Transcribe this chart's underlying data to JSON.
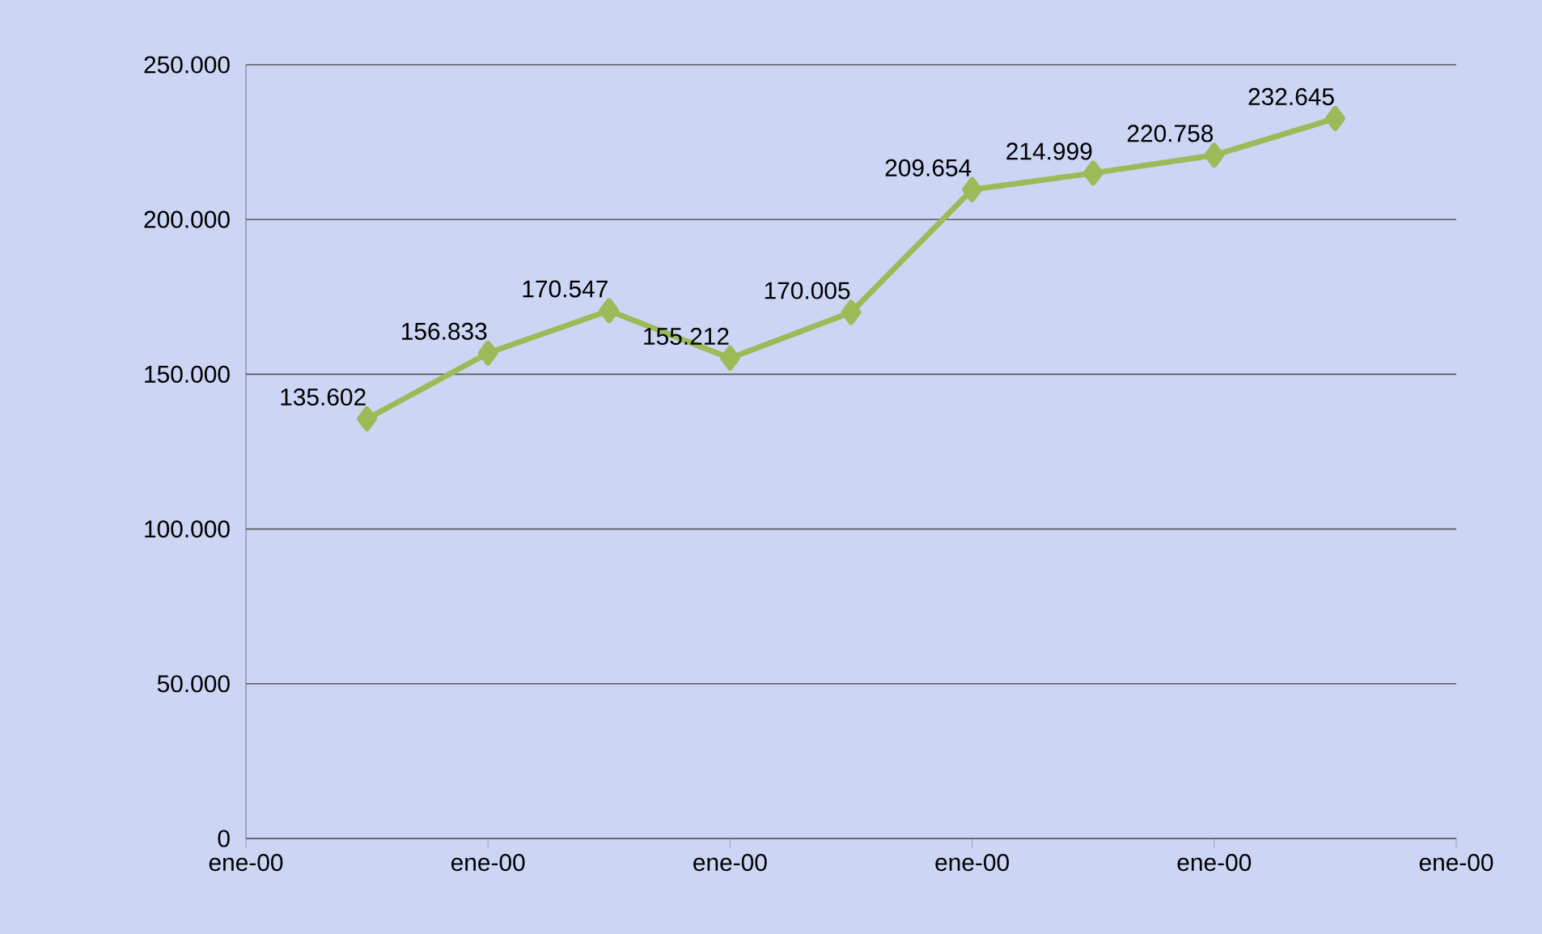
{
  "chart_data": {
    "type": "line",
    "categories": [
      "ene-00",
      null,
      "ene-00",
      null,
      "ene-00",
      null,
      "ene-00",
      null,
      "ene-00",
      null,
      "ene-00"
    ],
    "values": [
      null,
      135602,
      156833,
      170547,
      155212,
      170005,
      209654,
      214999,
      220758,
      232645,
      null
    ],
    "value_labels": [
      null,
      "135.602",
      "156.833",
      "170.547",
      "155.212",
      "170.005",
      "209.654",
      "214.999",
      "220.758",
      "232.645",
      null
    ],
    "color": "#9bbb59",
    "marker": "diamond",
    "line_style": "solid",
    "grid": "y",
    "ylim": [
      0,
      250000
    ],
    "yticks": [
      0,
      {
        "value": 50000,
        "label": "50.000"
      },
      {
        "value": 100000,
        "label": "100.000"
      },
      {
        "value": 150000,
        "label": "150.000"
      },
      {
        "value": 200000,
        "label": "200.000"
      },
      {
        "value": 250000,
        "label": "250.000"
      }
    ]
  }
}
